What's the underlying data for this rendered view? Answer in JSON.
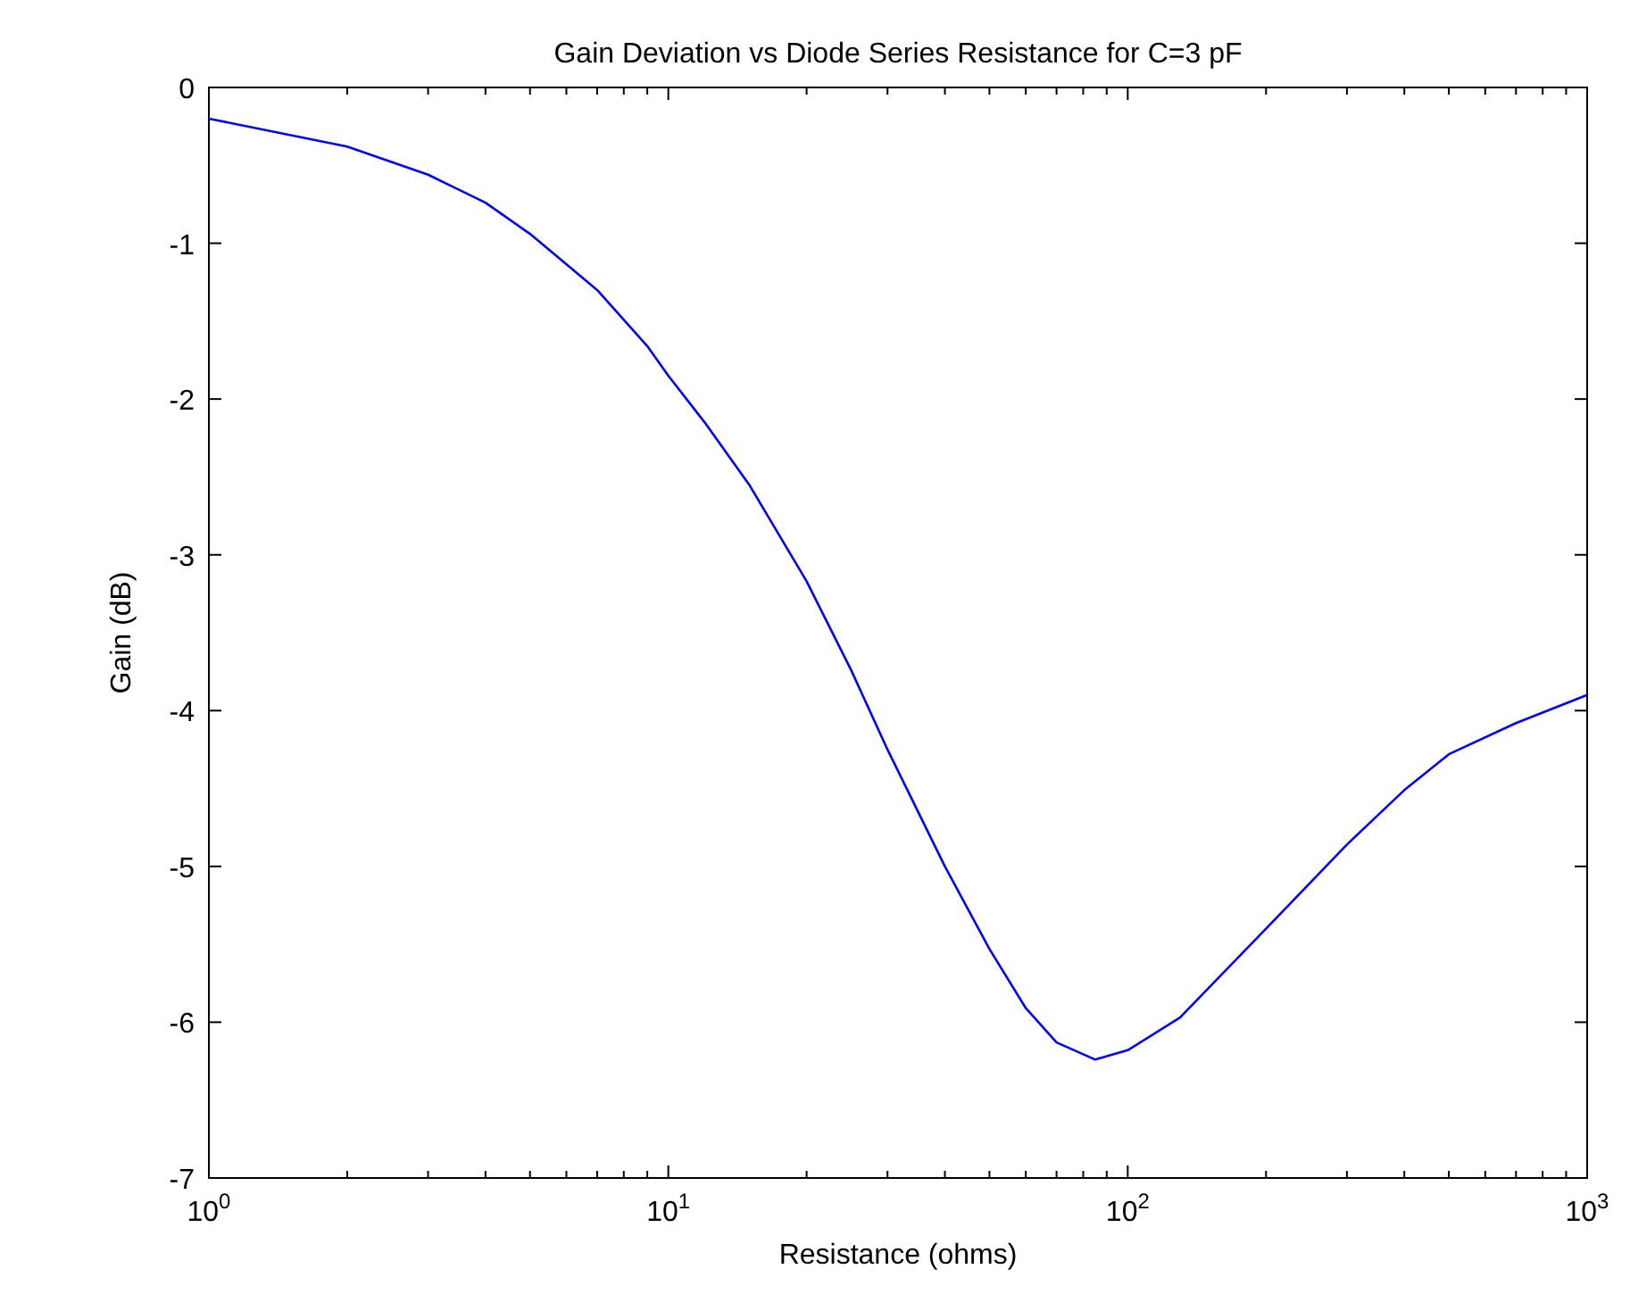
{
  "chart_data": {
    "type": "line",
    "title": "Gain Deviation vs Diode Series Resistance for C=3 pF",
    "xlabel": "Resistance (ohms)",
    "ylabel": "Gain (dB)",
    "log": "x",
    "xlim": [
      1,
      1000
    ],
    "xticks": [
      {
        "value": 1,
        "label": "10$^{0}$"
      },
      {
        "value": 10,
        "label": "10$^{1}$"
      },
      {
        "value": 100,
        "label": "10$^{2}$"
      },
      {
        "value": 1000,
        "label": "10$^{3}$"
      }
    ],
    "ylim": [
      -7,
      0
    ],
    "yticks": [
      -7,
      -6,
      -5,
      -4,
      -3,
      -2,
      -1,
      0
    ],
    "marker": "none",
    "line_style": "solid",
    "series": [
      {
        "color": "#0000ff",
        "x": [
          1,
          2,
          3,
          4,
          5,
          7,
          9,
          10,
          12,
          15,
          20,
          25,
          30,
          40,
          50,
          60,
          70,
          85,
          100,
          130,
          200,
          300,
          400,
          500,
          700,
          1000
        ],
        "values": [
          -0.2,
          -0.38,
          -0.56,
          -0.74,
          -0.94,
          -1.3,
          -1.66,
          -1.85,
          -2.15,
          -2.55,
          -3.17,
          -3.74,
          -4.25,
          -5.0,
          -5.53,
          -5.91,
          -6.13,
          -6.24,
          -6.18,
          -5.97,
          -5.4,
          -4.86,
          -4.51,
          -4.28,
          -4.08,
          -3.9
        ]
      }
    ]
  }
}
